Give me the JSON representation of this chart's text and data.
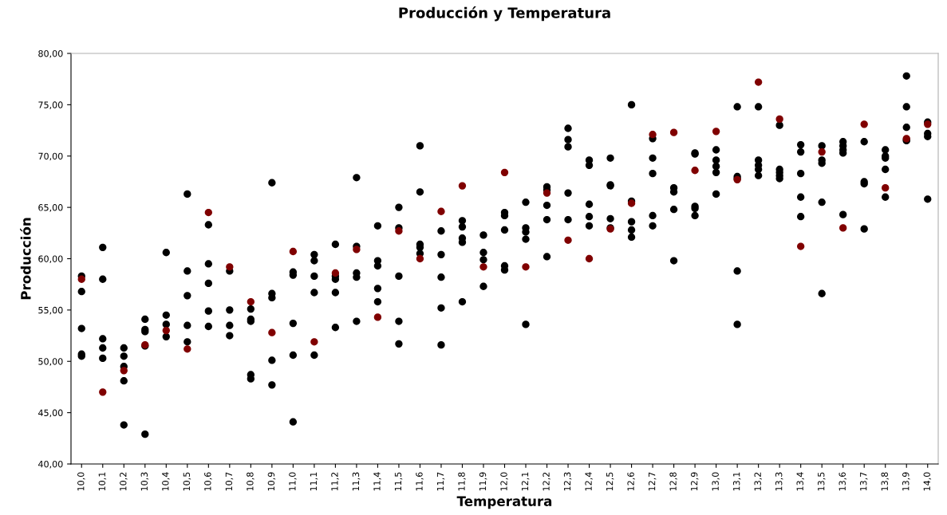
{
  "chart_data": {
    "type": "scatter",
    "title": "Producción y Temperatura",
    "xlabel": "Temperatura",
    "ylabel": "Producción",
    "marker": "circle",
    "grid": false,
    "xlim": [
      9.95,
      14.05
    ],
    "xticks": [
      {
        "value": 10.0,
        "label": "10,0"
      },
      {
        "value": 10.1,
        "label": "10,1"
      },
      {
        "value": 10.2,
        "label": "10,2"
      },
      {
        "value": 10.3,
        "label": "10,3"
      },
      {
        "value": 10.4,
        "label": "10,4"
      },
      {
        "value": 10.5,
        "label": "10,5"
      },
      {
        "value": 10.6,
        "label": "10,6"
      },
      {
        "value": 10.7,
        "label": "10,7"
      },
      {
        "value": 10.8,
        "label": "10,8"
      },
      {
        "value": 10.9,
        "label": "10,9"
      },
      {
        "value": 11.0,
        "label": "11,0"
      },
      {
        "value": 11.1,
        "label": "11,1"
      },
      {
        "value": 11.2,
        "label": "11,2"
      },
      {
        "value": 11.3,
        "label": "11,3"
      },
      {
        "value": 11.4,
        "label": "11,4"
      },
      {
        "value": 11.5,
        "label": "11,5"
      },
      {
        "value": 11.6,
        "label": "11,6"
      },
      {
        "value": 11.7,
        "label": "11,7"
      },
      {
        "value": 11.8,
        "label": "11,8"
      },
      {
        "value": 11.9,
        "label": "11,9"
      },
      {
        "value": 12.0,
        "label": "12,0"
      },
      {
        "value": 12.1,
        "label": "12,1"
      },
      {
        "value": 12.2,
        "label": "12,2"
      },
      {
        "value": 12.3,
        "label": "12,3"
      },
      {
        "value": 12.4,
        "label": "12,4"
      },
      {
        "value": 12.5,
        "label": "12,5"
      },
      {
        "value": 12.6,
        "label": "12,6"
      },
      {
        "value": 12.7,
        "label": "12,7"
      },
      {
        "value": 12.8,
        "label": "12,8"
      },
      {
        "value": 12.9,
        "label": "12,9"
      },
      {
        "value": 13.0,
        "label": "13,0"
      },
      {
        "value": 13.1,
        "label": "13,1"
      },
      {
        "value": 13.2,
        "label": "13,2"
      },
      {
        "value": 13.3,
        "label": "13,3"
      },
      {
        "value": 13.4,
        "label": "13,4"
      },
      {
        "value": 13.5,
        "label": "13,5"
      },
      {
        "value": 13.6,
        "label": "13,6"
      },
      {
        "value": 13.7,
        "label": "13,7"
      },
      {
        "value": 13.8,
        "label": "13,8"
      },
      {
        "value": 13.9,
        "label": "13,9"
      },
      {
        "value": 14.0,
        "label": "14,0"
      }
    ],
    "ylim": [
      40,
      80
    ],
    "yticks": [
      {
        "value": 40,
        "label": "40,00"
      },
      {
        "value": 45,
        "label": "45,00"
      },
      {
        "value": 50,
        "label": "50,00"
      },
      {
        "value": 55,
        "label": "55,00"
      },
      {
        "value": 60,
        "label": "60,00"
      },
      {
        "value": 65,
        "label": "65,00"
      },
      {
        "value": 70,
        "label": "70,00"
      },
      {
        "value": 75,
        "label": "75,00"
      },
      {
        "value": 80,
        "label": "80,00"
      }
    ],
    "series": [
      {
        "color": "#000000",
        "x": [
          10.0,
          10.0,
          10.0,
          10.0,
          10.0,
          10.1,
          10.1,
          10.1,
          10.1,
          10.1,
          10.2,
          10.2,
          10.2,
          10.2,
          10.2,
          10.3,
          10.3,
          10.3,
          10.3,
          10.3,
          10.4,
          10.4,
          10.4,
          10.4,
          10.5,
          10.5,
          10.5,
          10.5,
          10.5,
          10.6,
          10.6,
          10.6,
          10.6,
          10.6,
          10.7,
          10.7,
          10.7,
          10.7,
          10.8,
          10.8,
          10.8,
          10.8,
          10.8,
          10.9,
          10.9,
          10.9,
          10.9,
          10.9,
          11.0,
          11.0,
          11.0,
          11.0,
          11.0,
          11.1,
          11.1,
          11.1,
          11.1,
          11.1,
          11.2,
          11.2,
          11.2,
          11.2,
          11.2,
          11.3,
          11.3,
          11.3,
          11.3,
          11.3,
          11.4,
          11.4,
          11.4,
          11.4,
          11.4,
          11.5,
          11.5,
          11.5,
          11.5,
          11.5,
          11.6,
          11.6,
          11.6,
          11.6,
          11.6,
          11.7,
          11.7,
          11.7,
          11.7,
          11.7,
          11.8,
          11.8,
          11.8,
          11.8,
          11.8,
          11.9,
          11.9,
          11.9,
          11.9,
          12.0,
          12.0,
          12.0,
          12.0,
          12.0,
          12.1,
          12.1,
          12.1,
          12.1,
          12.1,
          12.2,
          12.2,
          12.2,
          12.2,
          12.2,
          12.3,
          12.3,
          12.3,
          12.3,
          12.3,
          12.4,
          12.4,
          12.4,
          12.4,
          12.4,
          12.5,
          12.5,
          12.5,
          12.5,
          12.5,
          12.6,
          12.6,
          12.6,
          12.6,
          12.6,
          12.7,
          12.7,
          12.7,
          12.7,
          12.7,
          12.8,
          12.8,
          12.8,
          12.8,
          12.9,
          12.9,
          12.9,
          12.9,
          12.9,
          13.0,
          13.0,
          13.0,
          13.0,
          13.0,
          13.1,
          13.1,
          13.1,
          13.1,
          13.1,
          13.2,
          13.2,
          13.2,
          13.2,
          13.2,
          13.3,
          13.3,
          13.3,
          13.3,
          13.3,
          13.4,
          13.4,
          13.4,
          13.4,
          13.4,
          13.5,
          13.5,
          13.5,
          13.5,
          13.5,
          13.6,
          13.6,
          13.6,
          13.6,
          13.6,
          13.7,
          13.7,
          13.7,
          13.7,
          13.8,
          13.8,
          13.8,
          13.8,
          13.8,
          13.9,
          13.9,
          13.9,
          13.9,
          13.9,
          14.0,
          14.0,
          14.0,
          14.0
        ],
        "values": [
          58.3,
          56.8,
          53.2,
          50.7,
          50.5,
          61.1,
          58.0,
          52.2,
          51.3,
          50.3,
          51.3,
          50.5,
          49.5,
          48.1,
          43.8,
          54.1,
          53.1,
          52.9,
          51.5,
          42.9,
          60.6,
          54.5,
          53.6,
          52.4,
          66.3,
          58.8,
          56.4,
          53.5,
          51.9,
          63.3,
          59.5,
          57.6,
          54.9,
          53.4,
          58.8,
          55.0,
          53.5,
          52.5,
          55.1,
          54.1,
          53.9,
          48.7,
          48.3,
          67.4,
          56.6,
          56.2,
          50.1,
          47.7,
          58.7,
          58.4,
          53.7,
          50.6,
          44.1,
          60.4,
          59.8,
          58.3,
          56.7,
          50.6,
          61.4,
          58.3,
          58.0,
          56.7,
          53.3,
          67.9,
          61.2,
          58.6,
          58.2,
          53.9,
          63.2,
          59.8,
          59.3,
          57.1,
          55.8,
          65.0,
          63.0,
          58.3,
          53.9,
          51.7,
          71.0,
          66.5,
          61.4,
          61.1,
          60.5,
          62.7,
          60.4,
          58.2,
          55.2,
          51.6,
          63.7,
          63.1,
          62.0,
          61.6,
          55.8,
          62.3,
          60.6,
          59.9,
          57.3,
          64.5,
          64.2,
          62.8,
          59.3,
          58.9,
          65.5,
          63.0,
          62.6,
          61.9,
          53.6,
          67.0,
          66.7,
          65.2,
          63.8,
          60.2,
          72.7,
          71.6,
          70.9,
          66.4,
          63.8,
          69.6,
          69.1,
          65.3,
          64.1,
          63.2,
          69.8,
          67.2,
          67.1,
          63.9,
          63.0,
          75.0,
          65.6,
          63.6,
          62.8,
          62.1,
          71.7,
          69.8,
          68.3,
          64.2,
          63.2,
          66.9,
          66.5,
          64.8,
          59.8,
          70.3,
          70.2,
          65.1,
          64.9,
          64.2,
          70.6,
          69.6,
          69.0,
          68.4,
          66.3,
          74.8,
          68.0,
          67.8,
          58.8,
          53.6,
          74.8,
          69.6,
          69.1,
          68.7,
          68.1,
          73.0,
          68.7,
          68.4,
          68.1,
          67.8,
          71.1,
          70.4,
          68.3,
          66.0,
          64.1,
          71.0,
          69.6,
          69.3,
          65.5,
          56.6,
          71.4,
          71.0,
          70.6,
          70.3,
          64.3,
          71.4,
          67.5,
          67.3,
          62.9,
          70.6,
          70.0,
          69.8,
          68.7,
          66.0,
          77.8,
          74.8,
          72.8,
          71.6,
          71.5,
          73.3,
          72.2,
          71.9,
          65.8
        ]
      },
      {
        "color": "#800000",
        "x": [
          10.0,
          10.1,
          10.2,
          10.3,
          10.4,
          10.5,
          10.6,
          10.7,
          10.8,
          10.9,
          11.0,
          11.1,
          11.2,
          11.3,
          11.4,
          11.5,
          11.6,
          11.7,
          11.8,
          11.9,
          12.0,
          12.1,
          12.2,
          12.3,
          12.4,
          12.5,
          12.6,
          12.7,
          12.8,
          12.9,
          13.0,
          13.1,
          13.2,
          13.3,
          13.4,
          13.5,
          13.6,
          13.7,
          13.8,
          13.9,
          14.0
        ],
        "values": [
          58.0,
          47.0,
          49.1,
          51.6,
          53.0,
          51.2,
          64.5,
          59.2,
          55.8,
          52.8,
          60.7,
          51.9,
          58.6,
          60.9,
          54.3,
          62.7,
          60.0,
          64.6,
          67.1,
          59.2,
          68.4,
          59.2,
          66.4,
          61.8,
          60.0,
          62.9,
          65.4,
          72.1,
          72.3,
          68.6,
          72.4,
          67.7,
          77.2,
          73.6,
          61.2,
          70.4,
          63.0,
          73.1,
          66.9,
          71.7,
          73.1
        ]
      }
    ]
  }
}
